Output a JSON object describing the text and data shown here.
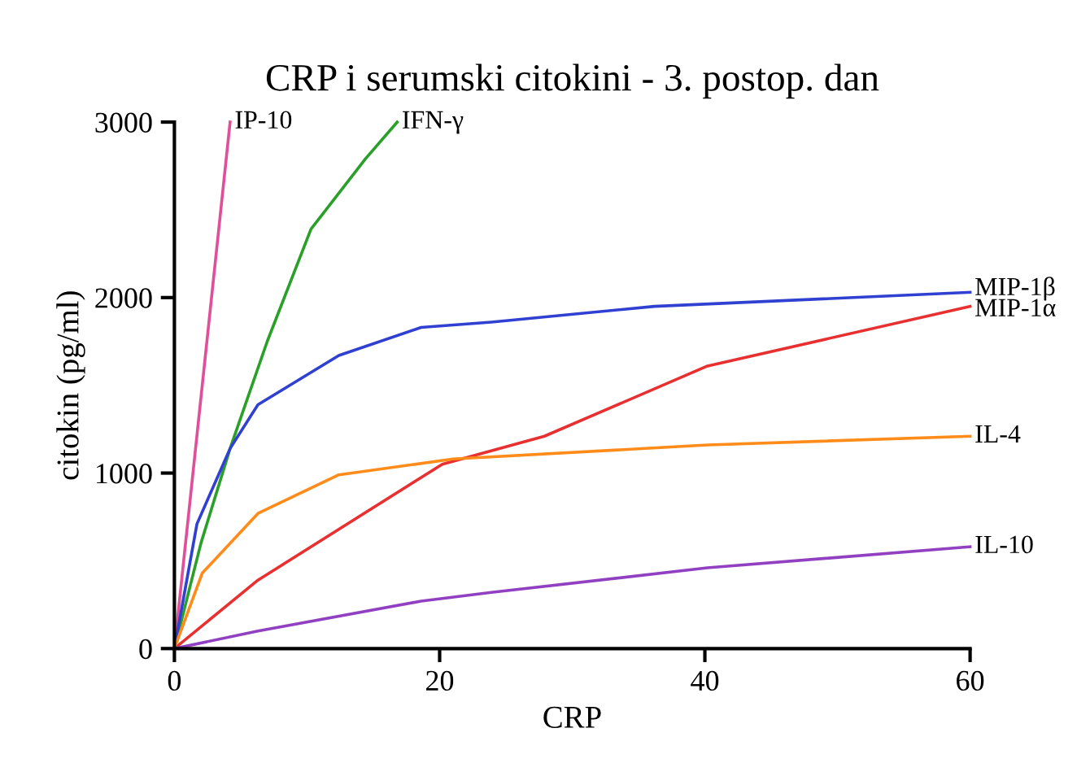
{
  "chart_data": {
    "type": "line",
    "title": "CRP i serumski citokini - 3. postop. dan",
    "xlabel": "CRP",
    "ylabel": "citokin (pg/ml)",
    "xlim": [
      0,
      60
    ],
    "ylim": [
      0,
      3000
    ],
    "xticks": [
      0,
      20,
      40,
      60
    ],
    "yticks": [
      0,
      1000,
      2000,
      3000
    ],
    "grid": false,
    "legend": false,
    "marker": "none",
    "line_style": "solid",
    "series": [
      {
        "name": "IP-10",
        "color": "#e0509a",
        "x": [
          0,
          4.2
        ],
        "values": [
          0,
          3000
        ]
      },
      {
        "name": "IFN-γ",
        "color": "#2aa02a",
        "x": [
          0,
          2,
          4.2,
          7,
          10.3,
          14.4,
          16.8
        ],
        "values": [
          0,
          600,
          1140,
          1750,
          2390,
          2790,
          3000
        ]
      },
      {
        "name": "MIP-1β",
        "color": "#3040d0",
        "x": [
          0,
          1.7,
          4.2,
          6.3,
          12.4,
          18.6,
          23.9,
          36.2,
          60
        ],
        "values": [
          0,
          710,
          1140,
          1390,
          1670,
          1830,
          1860,
          1950,
          2030
        ]
      },
      {
        "name": "MIP-1α",
        "color": "#e83030",
        "x": [
          0,
          6.3,
          20.2,
          27.9,
          40.2,
          60
        ],
        "values": [
          0,
          390,
          1050,
          1210,
          1610,
          1950
        ]
      },
      {
        "name": "IL-4",
        "color": "#ff8c1a",
        "x": [
          0,
          2.1,
          6.3,
          12.4,
          21,
          40.2,
          60
        ],
        "values": [
          0,
          430,
          770,
          990,
          1080,
          1160,
          1210
        ]
      },
      {
        "name": "IL-10",
        "color": "#9040c0",
        "x": [
          0,
          6.3,
          18.6,
          23.9,
          40.2,
          60
        ],
        "values": [
          0,
          100,
          270,
          320,
          460,
          580
        ]
      }
    ]
  }
}
